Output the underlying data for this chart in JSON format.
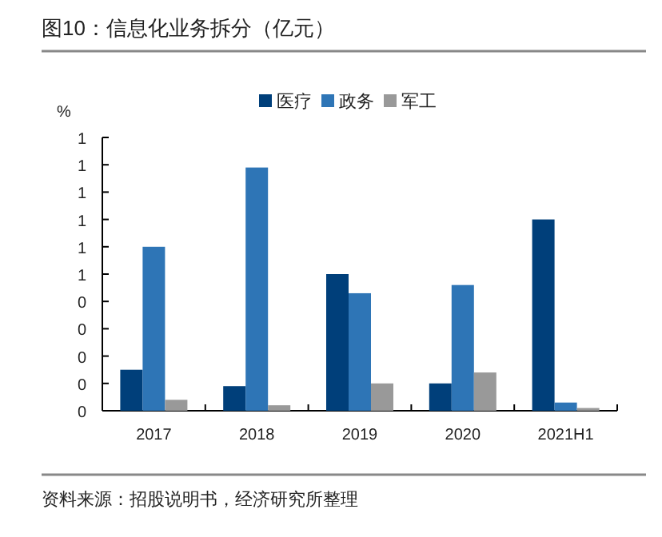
{
  "chart_data": {
    "type": "bar",
    "title": "图10：信息化业务拆分（亿元）",
    "ylabel": "%",
    "categories": [
      "2017",
      "2018",
      "2019",
      "2020",
      "2021H1"
    ],
    "series": [
      {
        "name": "医疗",
        "color": "#003f7a",
        "values": [
          0.15,
          0.09,
          0.5,
          0.1,
          0.7
        ]
      },
      {
        "name": "政务",
        "color": "#2e75b6",
        "values": [
          0.6,
          0.89,
          0.43,
          0.46,
          0.03
        ]
      },
      {
        "name": "军工",
        "color": "#999999",
        "values": [
          0.04,
          0.02,
          0.1,
          0.14,
          0.01
        ]
      }
    ],
    "ylim": [
      0,
      1
    ],
    "yticks": [
      {
        "value": 0,
        "label": "0"
      },
      {
        "value": 0.1,
        "label": "0"
      },
      {
        "value": 0.2,
        "label": "0"
      },
      {
        "value": 0.3,
        "label": "0"
      },
      {
        "value": 0.4,
        "label": "0"
      },
      {
        "value": 0.5,
        "label": "1"
      },
      {
        "value": 0.6,
        "label": "1"
      },
      {
        "value": 0.7,
        "label": "1"
      },
      {
        "value": 0.8,
        "label": "1"
      },
      {
        "value": 0.9,
        "label": "1"
      },
      {
        "value": 1,
        "label": "1"
      }
    ],
    "grid": false,
    "legend": "top right",
    "annotations": [
      "资料来源：招股说明书，经济研究所整理"
    ]
  }
}
